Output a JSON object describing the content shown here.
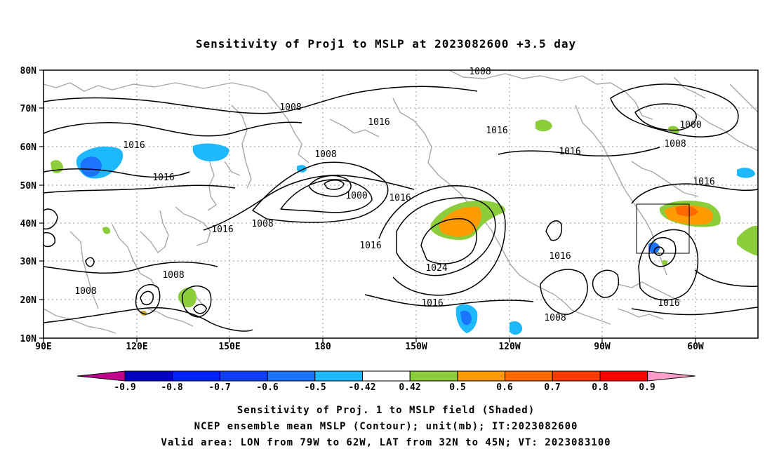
{
  "title": "Sensitivity of Proj1 to MSLP at 2023082600 +3.5 day",
  "map": {
    "lon_ticks": [
      "90E",
      "120E",
      "150E",
      "180",
      "150W",
      "120W",
      "90W",
      "60W"
    ],
    "lat_ticks": [
      "80N",
      "70N",
      "60N",
      "50N",
      "40N",
      "30N",
      "20N",
      "10N"
    ],
    "contour_labels": [
      "1008",
      "1008",
      "1016",
      "1016",
      "1016",
      "1016",
      "1000",
      "1008",
      "1000",
      "1008",
      "1016",
      "1016",
      "1016",
      "1008",
      "1016",
      "1016",
      "1008",
      "1024",
      "1016",
      "1008",
      "1016",
      "1016",
      "1008"
    ]
  },
  "colorbar": {
    "labels": [
      "-0.9",
      "-0.8",
      "-0.7",
      "-0.6",
      "-0.5",
      "-0.42",
      "0.42",
      "0.5",
      "0.6",
      "0.7",
      "0.8",
      "0.9"
    ],
    "colors": [
      "#c0008c",
      "#0000c0",
      "#0020ff",
      "#1040ff",
      "#1a74ff",
      "#1eb8ff",
      "#ffffff",
      "#8ccd3c",
      "#ff9a00",
      "#ff6a00",
      "#ff3a00",
      "#ff0000",
      "#ff9ec8"
    ]
  },
  "captions": [
    "Sensitivity of Proj. 1 to MSLP field (Shaded)",
    "NCEP ensemble mean MSLP (Contour); unit(mb); IT:2023082600",
    "Valid area: LON from 79W to 62W, LAT from 32N to 45N; VT: 2023083100"
  ]
}
